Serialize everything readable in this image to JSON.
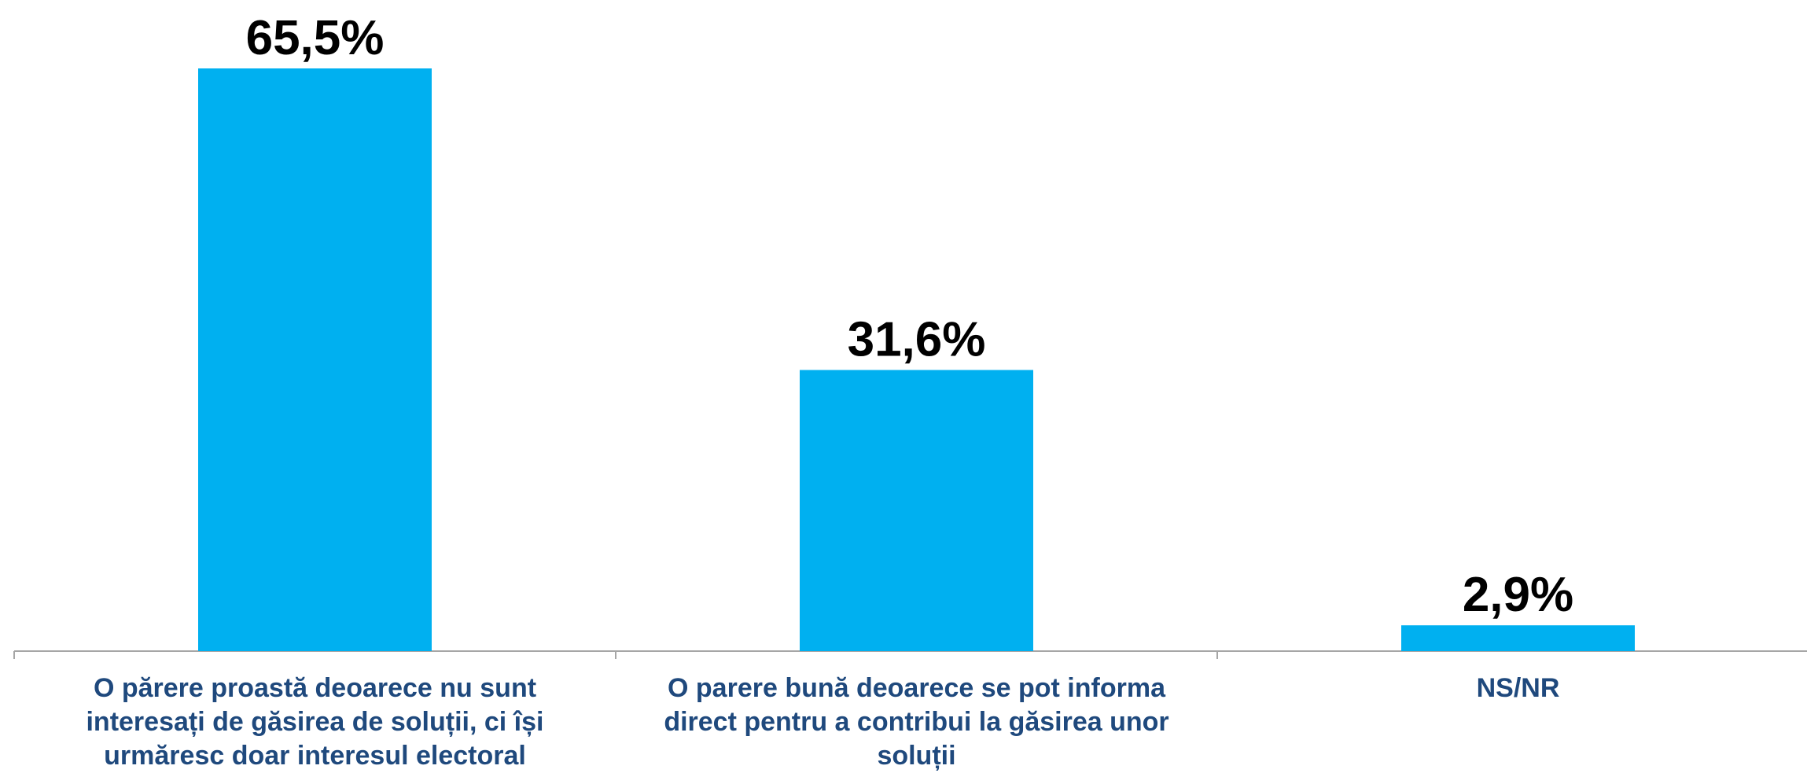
{
  "chart_data": {
    "type": "bar",
    "categories": [
      "O părere proastă deoarece nu sunt interesați de găsirea de soluții, ci își urmăresc doar interesul electoral",
      "O parere bună deoarece se pot informa direct pentru a contribui la găsirea unor soluții",
      "NS/NR"
    ],
    "values": [
      65.5,
      31.6,
      2.9
    ],
    "value_labels": [
      "65,5%",
      "31,6%",
      "2,9%"
    ],
    "title": "",
    "xlabel": "",
    "ylabel": "",
    "ylim": [
      0,
      65.5
    ],
    "grid": false,
    "legend": "none",
    "colors": {
      "bar": "#00B0F0",
      "value_text": "#000000",
      "category_text": "#1F497D",
      "axis": "#A6A6A6"
    }
  }
}
